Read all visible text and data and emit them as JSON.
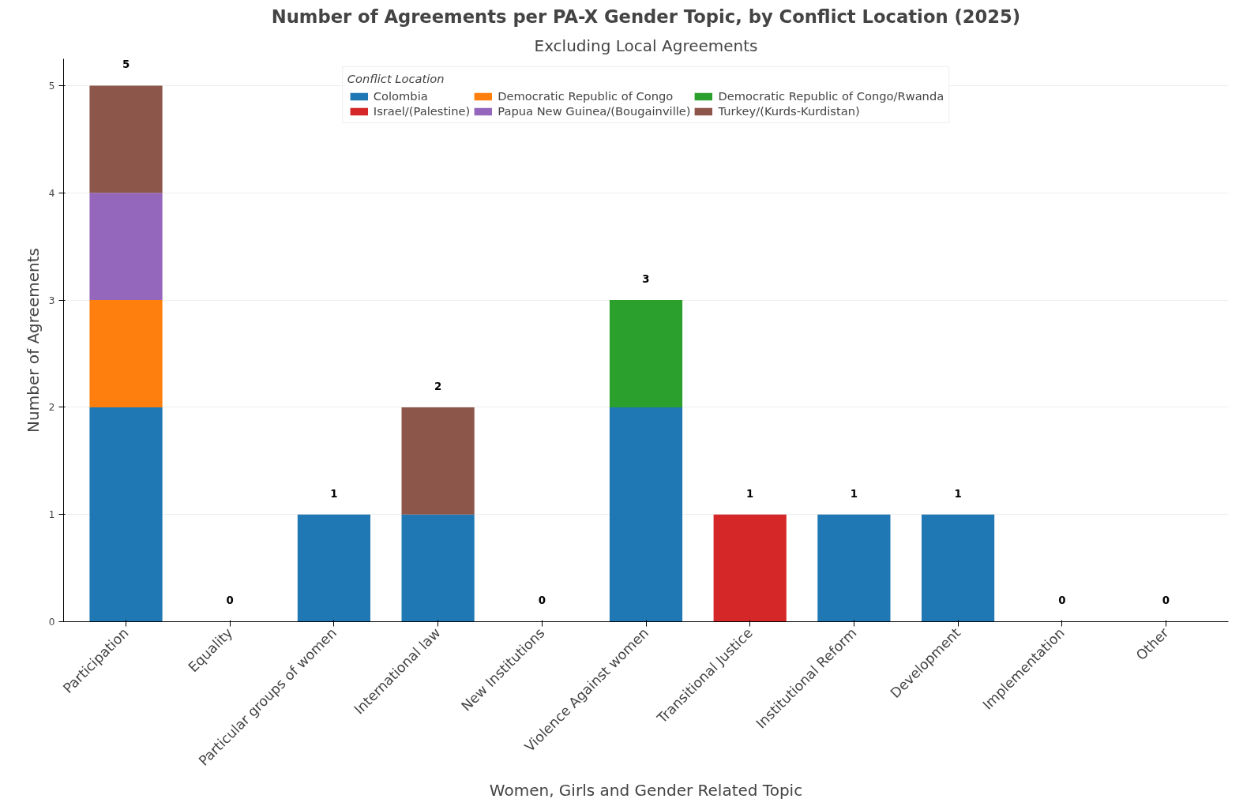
{
  "chart_data": {
    "type": "bar",
    "title": "Number of Agreements per PA-X Gender Topic, by Conflict Location (2025)",
    "subtitle": "Excluding Local Agreements",
    "xlabel": "Women, Girls and Gender Related Topic",
    "ylabel": "Number of Agreements",
    "legend_title": "Conflict Location",
    "categories": [
      "Participation",
      "Equality",
      "Particular groups of women",
      "International law",
      "New Institutions",
      "Violence Against women",
      "Transitional Justice",
      "Institutional Reform",
      "Development",
      "Implementation",
      "Other"
    ],
    "stacked": true,
    "ylim": [
      0,
      5.25
    ],
    "yticks": [
      0,
      1,
      2,
      3,
      4,
      5
    ],
    "grid": "y",
    "legend": "top",
    "totals": [
      "5",
      "0",
      "1",
      "2",
      "0",
      "3",
      "1",
      "1",
      "1",
      "0",
      "0"
    ],
    "series": [
      {
        "name": "Colombia",
        "color": "#1f77b4",
        "values": [
          2,
          0,
          1,
          1,
          0,
          2,
          0,
          1,
          1,
          0,
          0
        ]
      },
      {
        "name": "Democratic Republic of Congo",
        "color": "#ff7f0e",
        "values": [
          1,
          0,
          0,
          0,
          0,
          0,
          0,
          0,
          0,
          0,
          0
        ]
      },
      {
        "name": "Democratic Republic of Congo/Rwanda",
        "color": "#2ca02c",
        "values": [
          0,
          0,
          0,
          0,
          0,
          1,
          0,
          0,
          0,
          0,
          0
        ]
      },
      {
        "name": "Israel/(Palestine)",
        "color": "#d62728",
        "values": [
          0,
          0,
          0,
          0,
          0,
          0,
          1,
          0,
          0,
          0,
          0
        ]
      },
      {
        "name": "Papua New Guinea/(Bougainville)",
        "color": "#9467bd",
        "values": [
          1,
          0,
          0,
          0,
          0,
          0,
          0,
          0,
          0,
          0,
          0
        ]
      },
      {
        "name": "Turkey/(Kurds-Kurdistan)",
        "color": "#8c564b",
        "values": [
          1,
          0,
          0,
          1,
          0,
          0,
          0,
          0,
          0,
          0,
          0
        ]
      }
    ]
  }
}
